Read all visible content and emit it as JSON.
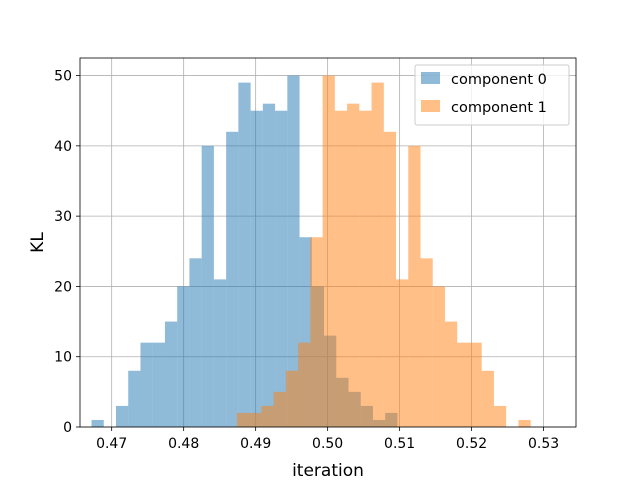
{
  "chart_data": {
    "type": "histogram",
    "title": "",
    "xlabel": "iteration",
    "ylabel": "KL",
    "xlim": [
      0.4656,
      0.5345
    ],
    "ylim": [
      0,
      52.5
    ],
    "grid": true,
    "legend_position": "top-right",
    "x_ticks": [
      0.47,
      0.48,
      0.49,
      0.5,
      0.51,
      0.52,
      0.53
    ],
    "x_tick_labels": [
      "0.47",
      "0.48",
      "0.49",
      "0.50",
      "0.51",
      "0.52",
      "0.53"
    ],
    "y_ticks": [
      0,
      10,
      20,
      30,
      40,
      50
    ],
    "y_tick_labels": [
      "0",
      "10",
      "20",
      "30",
      "40",
      "50"
    ],
    "series": [
      {
        "name": "component 0",
        "color": "#1f77b4",
        "opacity": 0.5,
        "bin_start": 0.4672,
        "bin_width": 0.0017,
        "counts": [
          1,
          0,
          3,
          8,
          12,
          12,
          15,
          20,
          24,
          40,
          21,
          42,
          49,
          45,
          46,
          45,
          50,
          27,
          20,
          13,
          7,
          5,
          3,
          1,
          2
        ]
      },
      {
        "name": "component 1",
        "color": "#ff7f0e",
        "opacity": 0.5,
        "bin_start": 0.4874,
        "bin_width": 0.0017,
        "counts": [
          2,
          2,
          3,
          5,
          8,
          12,
          27,
          50,
          45,
          46,
          45,
          49,
          42,
          21,
          40,
          24,
          20,
          15,
          12,
          12,
          8,
          3,
          0,
          1
        ]
      }
    ]
  }
}
